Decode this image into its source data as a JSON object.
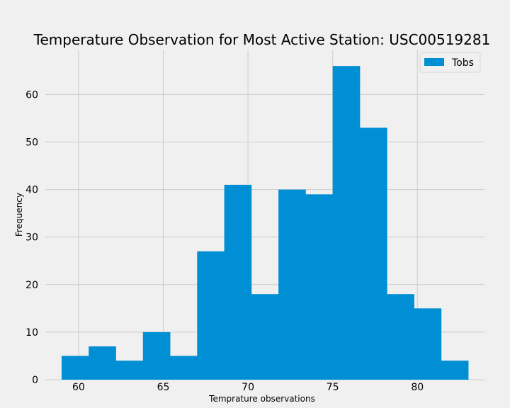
{
  "chart_data": {
    "type": "bar",
    "title": "Temperature Observation for Most Active Station: USC00519281",
    "xlabel": "Temprature observations",
    "ylabel": "Frequency",
    "bin_edges": [
      59,
      60.6,
      62.2,
      63.8,
      65.4,
      67,
      68.6,
      70.2,
      71.8,
      73.4,
      75,
      76.6,
      78.2,
      79.8,
      81.4,
      83
    ],
    "values": [
      5,
      7,
      4,
      10,
      5,
      27,
      41,
      18,
      40,
      39,
      66,
      53,
      18,
      15,
      4
    ],
    "xlim": [
      58.04,
      83.96
    ],
    "ylim": [
      0,
      69.3
    ],
    "xticks": [
      60,
      65,
      70,
      75,
      80
    ],
    "yticks": [
      0,
      10,
      20,
      30,
      40,
      50,
      60
    ],
    "series": [
      {
        "name": "Tobs",
        "color": "#008fd5"
      }
    ],
    "legend_position": "top-right",
    "grid": true,
    "background": "#f0f0f0"
  }
}
